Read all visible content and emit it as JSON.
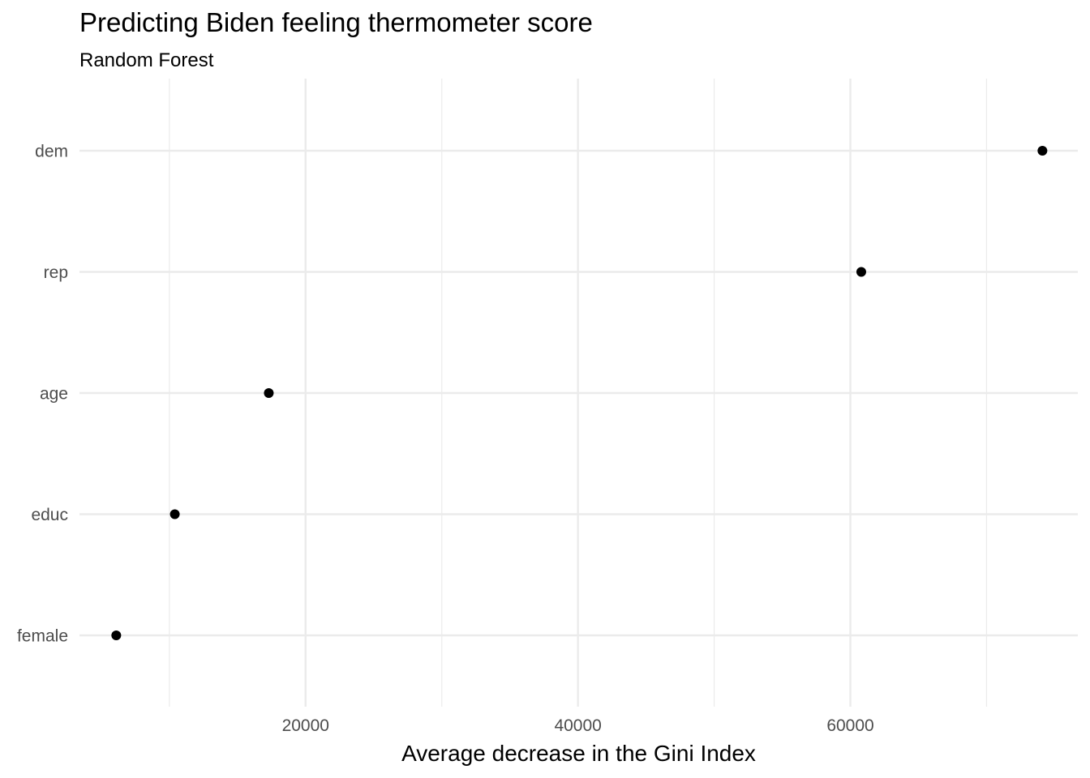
{
  "chart_data": {
    "type": "scatter",
    "title": "Predicting Biden feeling thermometer score",
    "subtitle": "Random Forest",
    "xlabel": "Average decrease in the Gini Index",
    "ylabel": "",
    "categories": [
      "dem",
      "rep",
      "age",
      "educ",
      "female"
    ],
    "values": [
      74100,
      60800,
      17300,
      10400,
      6100
    ],
    "xlim": [
      3400,
      76700
    ],
    "x_ticks": [
      20000,
      40000,
      60000
    ],
    "x_tick_labels": [
      "20000",
      "40000",
      "60000"
    ],
    "x_minor_ticks": [
      10000,
      30000,
      50000,
      70000
    ],
    "grid": true,
    "point_color": "#000000"
  }
}
